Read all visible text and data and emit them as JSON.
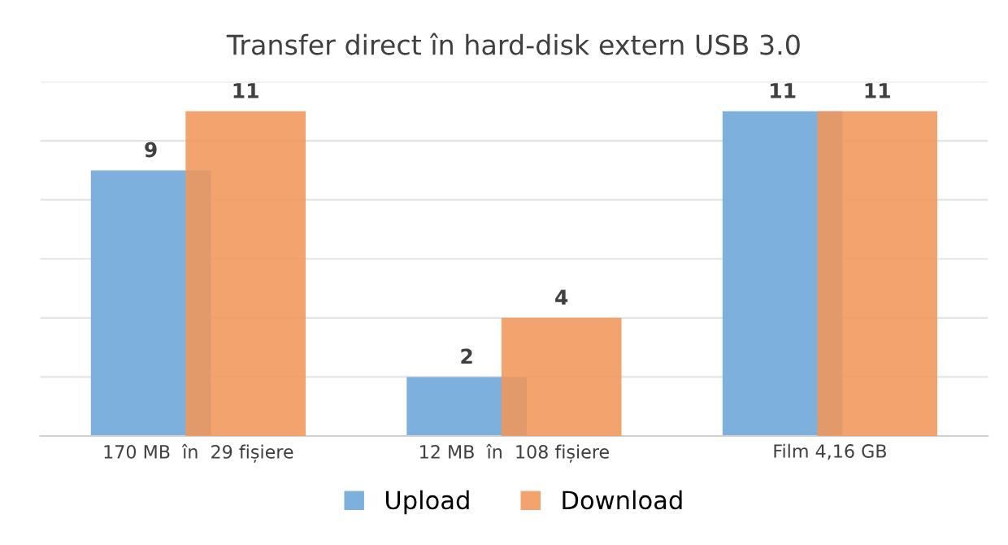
{
  "chart_data": {
    "type": "bar",
    "title": "Transfer direct în hard-disk extern USB 3.0",
    "categories": [
      "170 MB  în  29 fișiere",
      "12 MB  în  108 fișiere",
      "Film 4,16 GB"
    ],
    "series": [
      {
        "name": "Upload",
        "color": "#7eb0de",
        "values": [
          9,
          2,
          11
        ]
      },
      {
        "name": "Download",
        "color": "#f0965a",
        "values": [
          11,
          4,
          11
        ]
      }
    ],
    "ylim": [
      0,
      12
    ],
    "yticks": [
      {
        "value": 0,
        "label": null
      },
      {
        "value": 2,
        "label": null
      },
      {
        "value": 4,
        "label": null
      },
      {
        "value": 6,
        "label": null
      },
      {
        "value": 8,
        "label": null
      },
      {
        "value": 10,
        "label": null
      },
      {
        "value": 12,
        "label": null
      }
    ],
    "grid": "y",
    "legend": "bottom",
    "data_labels": true,
    "tick_labels": "x"
  }
}
